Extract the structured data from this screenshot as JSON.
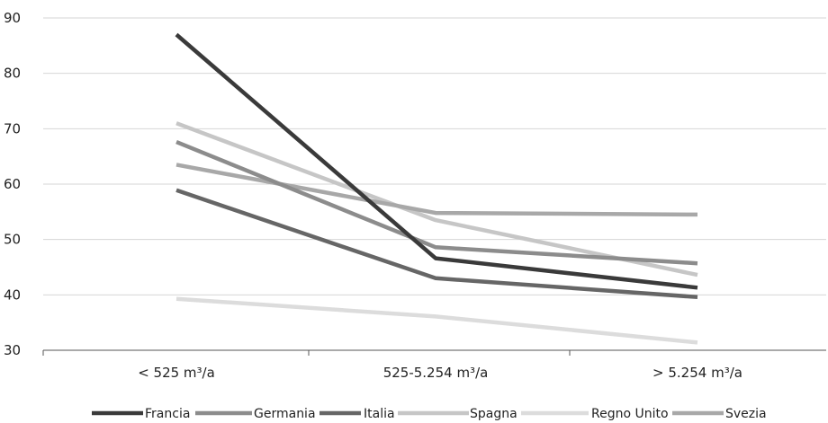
{
  "chart_data": {
    "type": "line",
    "title": "",
    "xlabel": "",
    "ylabel": "",
    "categories": [
      "< 525 m³/a",
      "525-5.254 m³/a",
      "> 5.254 m³/a"
    ],
    "ylim": [
      30,
      90
    ],
    "yticks": [
      30,
      40,
      50,
      60,
      70,
      80,
      90
    ],
    "grid": true,
    "legend_position": "bottom",
    "series": [
      {
        "name": "Francia",
        "color": "#3a3a3a",
        "values": [
          87,
          46.6,
          41.3
        ]
      },
      {
        "name": "Germania",
        "color": "#8c8c8c",
        "values": [
          67.6,
          48.6,
          45.7
        ]
      },
      {
        "name": "Italia",
        "color": "#666666",
        "values": [
          58.9,
          43.0,
          39.6
        ]
      },
      {
        "name": "Spagna",
        "color": "#c6c6c6",
        "values": [
          71.0,
          53.5,
          43.6
        ]
      },
      {
        "name": "Regno Unito",
        "color": "#dcdcdc",
        "values": [
          39.3,
          36.1,
          31.4
        ]
      },
      {
        "name": "Svezia",
        "color": "#a8a8a8",
        "values": [
          63.5,
          54.8,
          54.5
        ]
      }
    ]
  }
}
